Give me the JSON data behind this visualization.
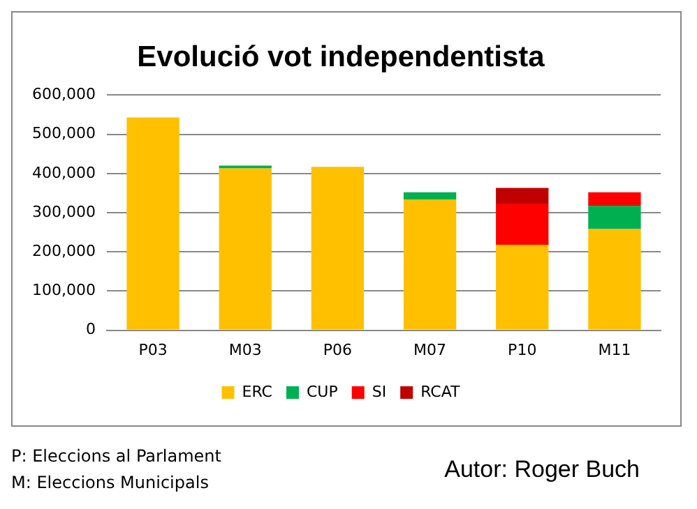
{
  "chart_data": {
    "type": "bar",
    "title": "Evolució vot independentista",
    "categories": [
      "P03",
      "M03",
      "P06",
      "M07",
      "P10",
      "M11"
    ],
    "stacked": true,
    "series": [
      {
        "name": "ERC",
        "color": "#ffc000",
        "values": [
          543000,
          413000,
          417000,
          334000,
          218000,
          258000
        ]
      },
      {
        "name": "CUP",
        "color": "#00b050",
        "values": [
          null,
          7000,
          null,
          18000,
          null,
          60000
        ]
      },
      {
        "name": "SI",
        "color": "#ff0000",
        "values": [
          null,
          null,
          null,
          null,
          105000,
          34000
        ]
      },
      {
        "name": "RCAT",
        "color": "#c00000",
        "values": [
          null,
          null,
          null,
          null,
          40000,
          null
        ]
      }
    ],
    "ylim": [
      0,
      600000
    ],
    "yticks": [
      {
        "value": 0,
        "label": "0"
      },
      {
        "value": 100000,
        "label": "100,000"
      },
      {
        "value": 200000,
        "label": "200,000"
      },
      {
        "value": 300000,
        "label": "300,000"
      },
      {
        "value": 400000,
        "label": "400,000"
      },
      {
        "value": 500000,
        "label": "500,000"
      },
      {
        "value": 600000,
        "label": "600,000"
      }
    ],
    "grid": "y",
    "legend": "bottom",
    "annotations": [
      "P: Eleccions al Parlament",
      "M: Eleccions Municipals",
      "Autor: Roger Buch"
    ]
  }
}
